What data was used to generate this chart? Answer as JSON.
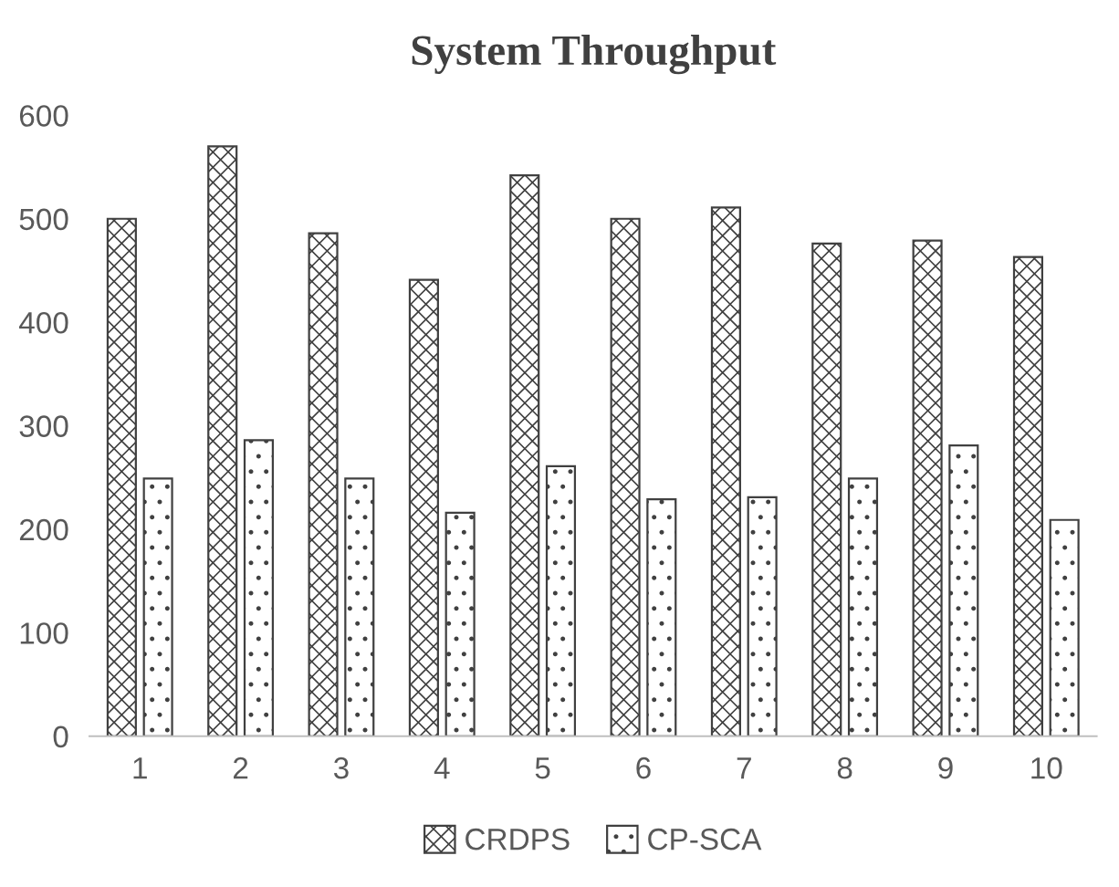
{
  "chart_data": {
    "type": "bar",
    "title": "System Throughput",
    "categories": [
      "1",
      "2",
      "3",
      "4",
      "5",
      "6",
      "7",
      "8",
      "9",
      "10"
    ],
    "series": [
      {
        "name": "CRDPS",
        "color": "#404040",
        "values": [
          500,
          570,
          486,
          441,
          542,
          500,
          511,
          476,
          479,
          463
        ]
      },
      {
        "name": "CP-SCA",
        "color": "#404040",
        "values": [
          249,
          286,
          249,
          216,
          261,
          229,
          231,
          249,
          281,
          209
        ]
      }
    ],
    "ylim": [
      0,
      600
    ],
    "yticks": [
      0,
      100,
      200,
      300,
      400,
      500,
      600
    ],
    "grid": false,
    "legend": "bottom"
  }
}
